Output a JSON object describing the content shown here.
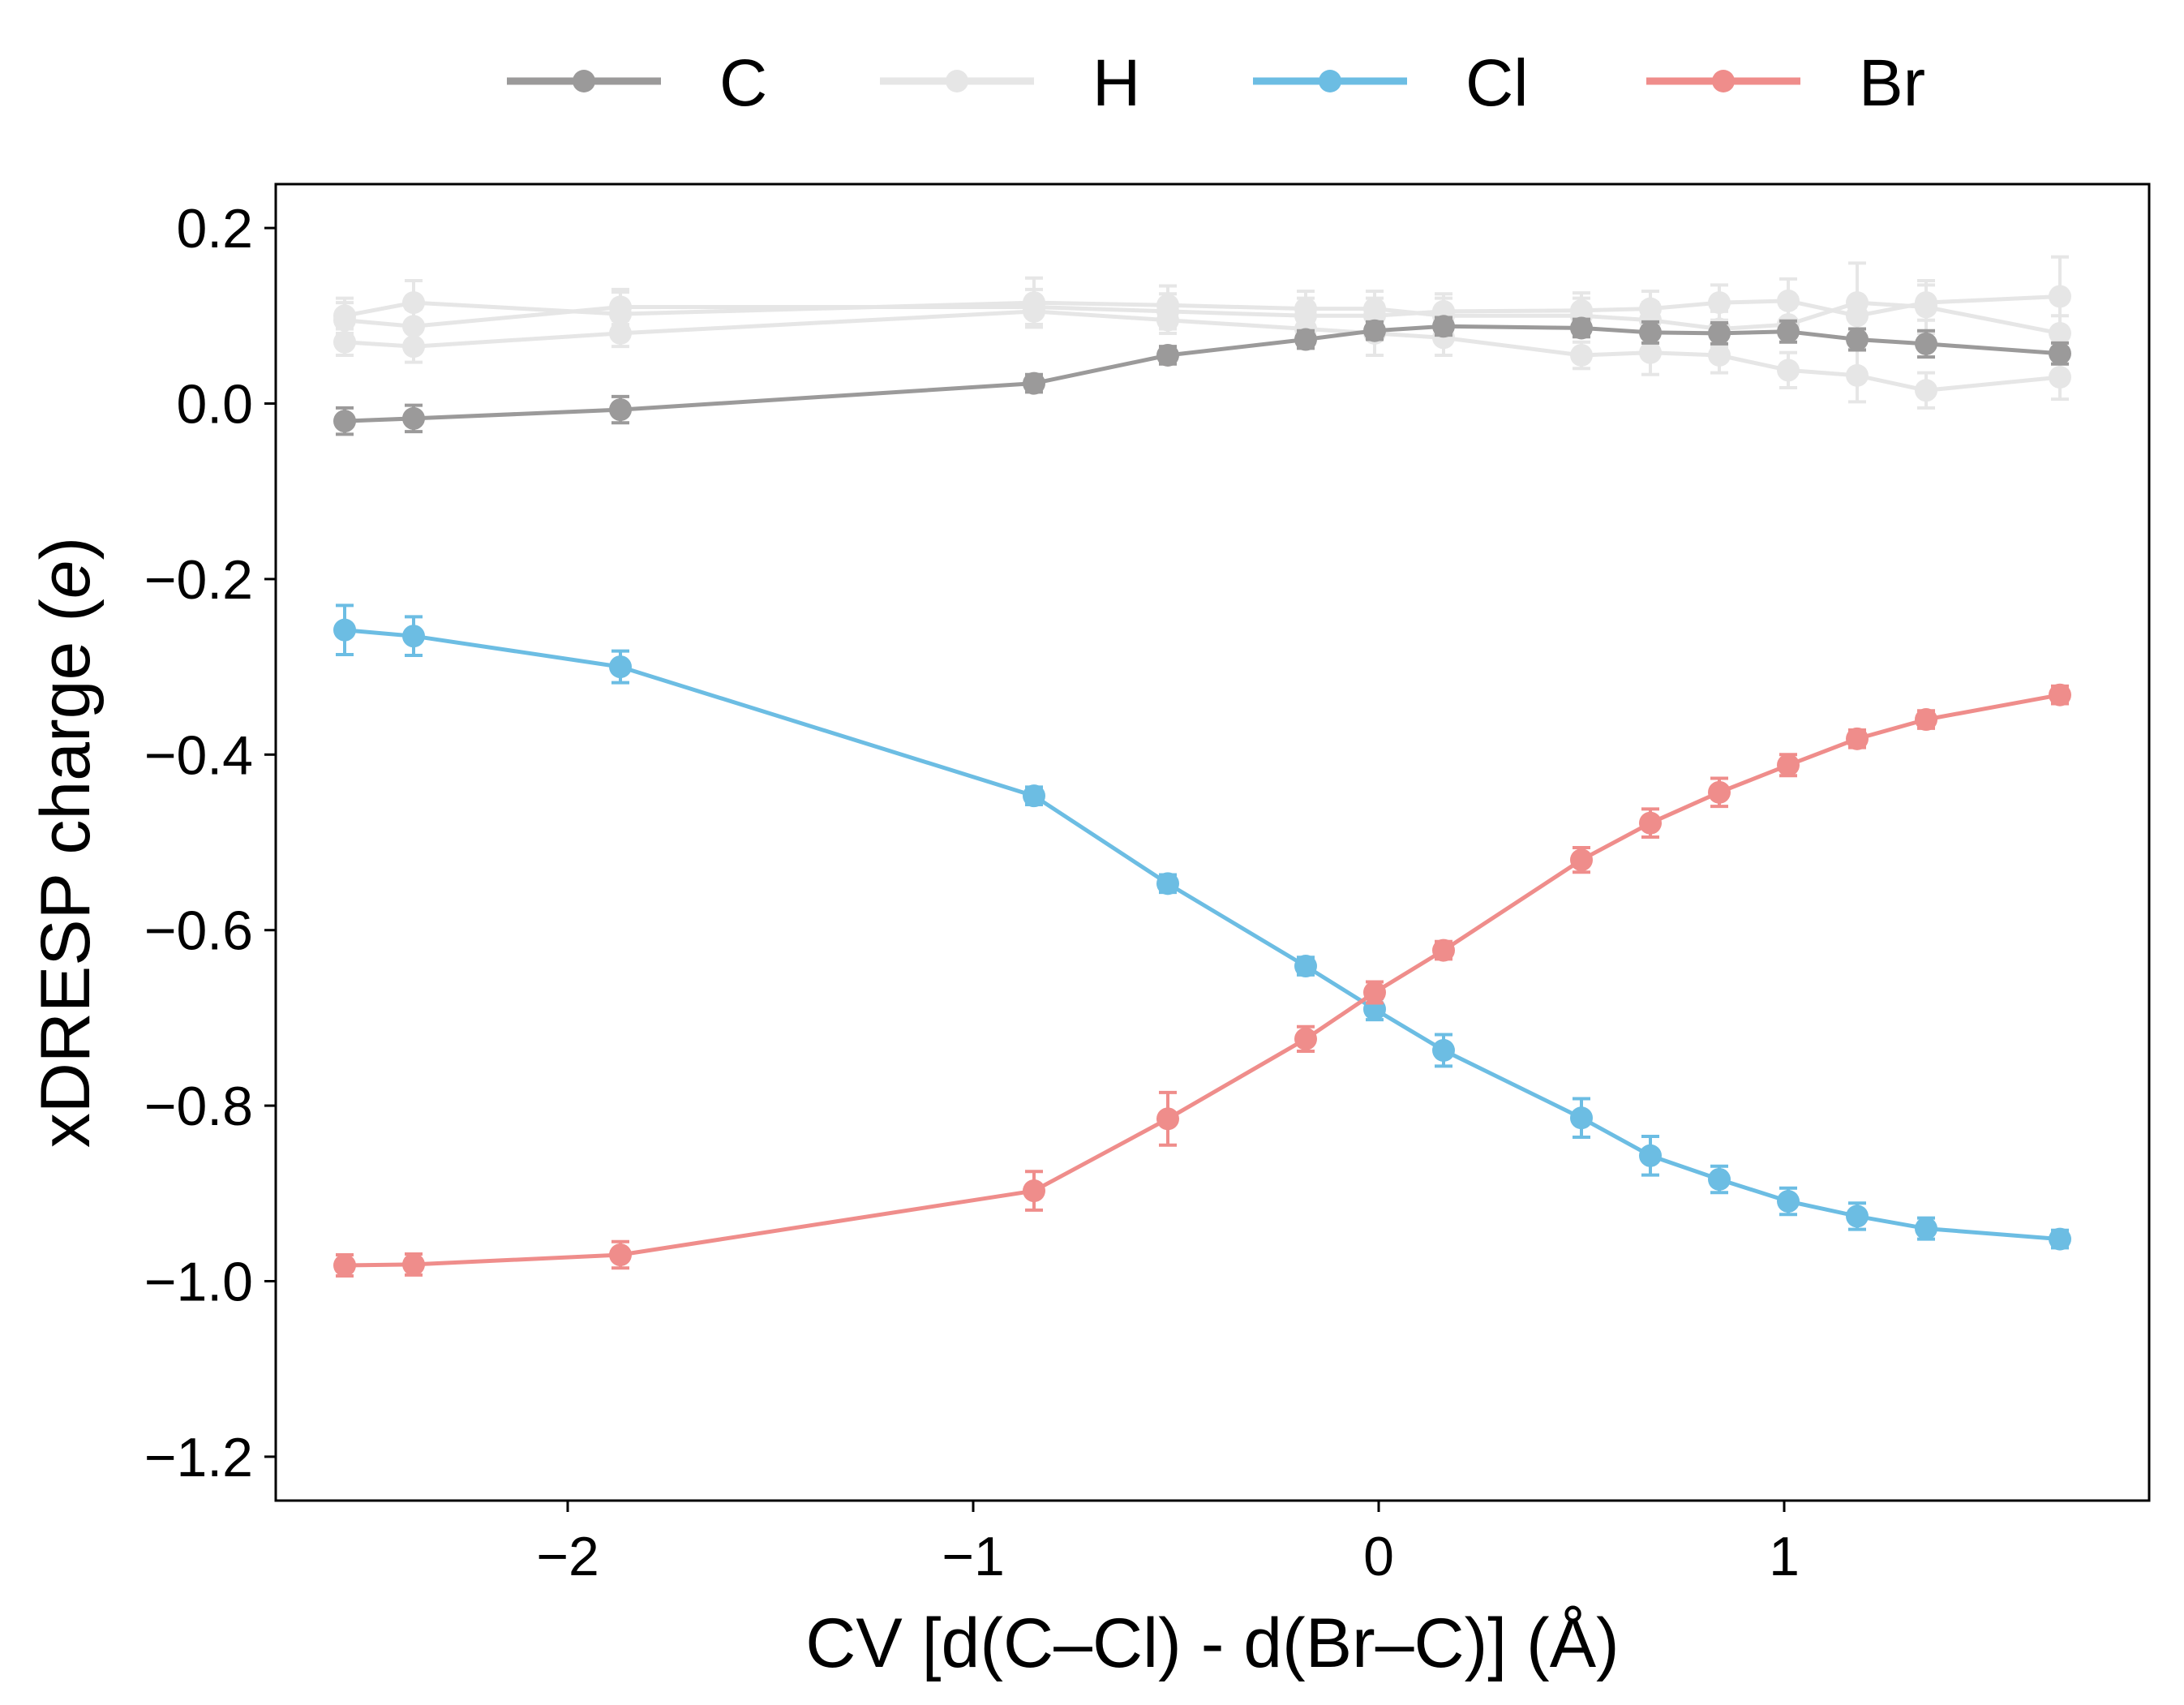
{
  "chart_data": {
    "type": "line",
    "title": "",
    "xlabel": "CV [d(C–Cl) - d(Br–C)] (Å)",
    "ylabel_main": "xDRESP charge (",
    "ylabel_unit": "e",
    "ylabel_close": ")",
    "xlim": [
      -2.72,
      1.9
    ],
    "ylim": [
      -1.25,
      0.25
    ],
    "xticks": [
      -2,
      -1,
      0,
      1
    ],
    "xtick_labels": [
      "−2",
      "−1",
      "0",
      "1"
    ],
    "yticks": [
      0.2,
      0.0,
      -0.2,
      -0.4,
      -0.6,
      -0.8,
      -1.0,
      -1.2
    ],
    "ytick_labels": [
      "0.2",
      "0.0",
      "−0.2",
      "−0.4",
      "−0.6",
      "−0.8",
      "−1.0",
      "−1.2"
    ],
    "grid": false,
    "legend_position": "top",
    "x": [
      -2.55,
      -2.38,
      -1.87,
      -0.85,
      -0.52,
      -0.18,
      -0.01,
      0.16,
      0.5,
      0.67,
      0.84,
      1.01,
      1.18,
      1.35,
      1.68
    ],
    "series": [
      {
        "name": "H",
        "color": "#e6e6e6",
        "legend_label": "H",
        "lines": [
          {
            "values": [
              0.1,
              0.115,
              0.102,
              0.115,
              0.112,
              0.108,
              0.108,
              0.1,
              0.1,
              0.095,
              0.085,
              0.09,
              0.115,
              0.11,
              0.08
            ],
            "errors": [
              0.02,
              0.025,
              0.025,
              0.028,
              0.022,
              0.02,
              0.02,
              0.02,
              0.02,
              0.02,
              0.02,
              0.02,
              0.045,
              0.03,
              0.02
            ]
          },
          {
            "values": [
              0.095,
              0.088,
              0.11,
              0.11,
              0.105,
              0.1,
              0.1,
              0.105,
              0.106,
              0.108,
              0.115,
              0.117,
              0.1,
              0.115,
              0.122
            ],
            "errors": [
              0.02,
              0.02,
              0.02,
              0.02,
              0.02,
              0.02,
              0.02,
              0.02,
              0.02,
              0.02,
              0.02,
              0.025,
              0.02,
              0.02,
              0.045
            ]
          },
          {
            "values": [
              0.07,
              0.065,
              0.08,
              0.105,
              0.095,
              0.085,
              0.08,
              0.075,
              0.055,
              0.058,
              0.055,
              0.038,
              0.032,
              0.015,
              0.03
            ],
            "errors": [
              0.015,
              0.018,
              0.015,
              0.015,
              0.015,
              0.015,
              0.025,
              0.02,
              0.015,
              0.025,
              0.02,
              0.02,
              0.03,
              0.02,
              0.025
            ]
          }
        ]
      },
      {
        "name": "C",
        "color": "#9b9a9a",
        "legend_label": "C",
        "lines": [
          {
            "values": [
              -0.02,
              -0.017,
              -0.007,
              0.023,
              0.055,
              0.073,
              0.083,
              0.088,
              0.086,
              0.081,
              0.08,
              0.082,
              0.073,
              0.068,
              0.057
            ],
            "errors": [
              0.015,
              0.015,
              0.015,
              0.01,
              0.01,
              0.01,
              0.01,
              0.01,
              0.01,
              0.012,
              0.012,
              0.012,
              0.012,
              0.015,
              0.012
            ]
          }
        ]
      },
      {
        "name": "Cl",
        "color": "#6cbde3",
        "legend_label": "Cl",
        "lines": [
          {
            "values": [
              -0.258,
              -0.265,
              -0.3,
              -0.447,
              -0.547,
              -0.641,
              -0.69,
              -0.737,
              -0.814,
              -0.857,
              -0.884,
              -0.909,
              -0.926,
              -0.94,
              -0.952
            ],
            "errors": [
              0.028,
              0.022,
              0.018,
              0.01,
              0.01,
              0.01,
              0.012,
              0.018,
              0.022,
              0.022,
              0.015,
              0.015,
              0.015,
              0.012,
              0.01
            ]
          }
        ]
      },
      {
        "name": "Br",
        "color": "#ef8d8b",
        "legend_label": "Br",
        "lines": [
          {
            "values": [
              -0.982,
              -0.981,
              -0.97,
              -0.897,
              -0.815,
              -0.724,
              -0.671,
              -0.623,
              -0.52,
              -0.478,
              -0.443,
              -0.412,
              -0.382,
              -0.36,
              -0.332
            ],
            "errors": [
              0.012,
              0.012,
              0.015,
              0.022,
              0.03,
              0.014,
              0.012,
              0.01,
              0.014,
              0.016,
              0.016,
              0.012,
              0.01,
              0.01,
              0.01
            ]
          }
        ]
      }
    ],
    "legend_order": [
      "C",
      "H",
      "Cl",
      "Br"
    ]
  }
}
